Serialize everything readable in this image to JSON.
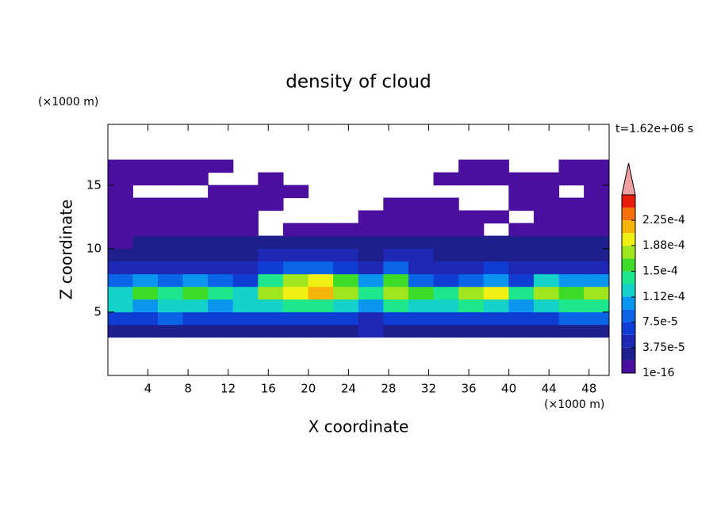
{
  "chart_data": {
    "type": "contour",
    "title": "density of cloud",
    "time_label": "t=1.62e+06 s",
    "xlabel": "X coordinate",
    "ylabel": "Z coordinate",
    "x_unit": "(×1000 m)",
    "y_unit": "(×1000 m)",
    "xlim": [
      0,
      50
    ],
    "ylim": [
      0,
      19.8
    ],
    "xticks": [
      4,
      8,
      12,
      16,
      20,
      24,
      28,
      32,
      36,
      40,
      44,
      48
    ],
    "yticks": [
      5,
      10,
      15
    ],
    "field": {
      "x": [
        1.25,
        3.75,
        6.25,
        8.75,
        11.25,
        13.75,
        16.25,
        18.75,
        21.25,
        23.75,
        26.25,
        28.75,
        31.25,
        33.75,
        36.25,
        38.75,
        41.25,
        43.75,
        46.25,
        48.75
      ],
      "z": [
        3.5,
        4.5,
        5.5,
        6.5,
        7.5,
        8.5,
        9.5,
        10.5,
        11.5,
        12.5,
        13.5,
        14.5,
        15.5,
        16.5
      ],
      "values": [
        [
          2.8e-05,
          2.8e-05,
          2.8e-05,
          2.8e-05,
          2.8e-05,
          2.8e-05,
          2.8e-05,
          2.8e-05,
          2.8e-05,
          2.8e-05,
          4.7e-05,
          2.8e-05,
          2.8e-05,
          2.8e-05,
          2.8e-05,
          2.8e-05,
          2.8e-05,
          2.8e-05,
          2.8e-05,
          2.8e-05
        ],
        [
          6.5e-05,
          6.5e-05,
          8.4e-05,
          6.5e-05,
          6.5e-05,
          6.5e-05,
          6.5e-05,
          6.5e-05,
          6.5e-05,
          6.5e-05,
          4.7e-05,
          6.5e-05,
          6.5e-05,
          6.5e-05,
          6.5e-05,
          6.5e-05,
          6.5e-05,
          6.5e-05,
          8.4e-05,
          8.4e-05
        ],
        [
          0.000122,
          0.000103,
          0.000122,
          0.000122,
          0.000103,
          0.000122,
          0.000122,
          0.00014,
          0.00014,
          0.000122,
          0.000103,
          0.00014,
          0.000122,
          0.000122,
          0.00014,
          0.000122,
          0.000103,
          0.000122,
          0.00014,
          0.00014
        ],
        [
          0.000122,
          0.00016,
          0.00014,
          0.00016,
          0.00014,
          0.000122,
          0.000178,
          0.000197,
          0.000215,
          0.000178,
          0.00014,
          0.000178,
          0.00016,
          0.00014,
          0.000178,
          0.000197,
          0.00014,
          0.000178,
          0.00016,
          0.000178
        ],
        [
          8.4e-05,
          0.000103,
          8.4e-05,
          0.000103,
          8.4e-05,
          6.5e-05,
          0.00014,
          0.000178,
          0.000197,
          0.00016,
          0.000103,
          0.00016,
          8.4e-05,
          6.5e-05,
          8.4e-05,
          0.000103,
          6.5e-05,
          0.000122,
          0.000103,
          0.000103
        ],
        [
          4.7e-05,
          4.7e-05,
          4.7e-05,
          4.7e-05,
          4.7e-05,
          4.7e-05,
          6.5e-05,
          8.4e-05,
          8.4e-05,
          6.5e-05,
          4.7e-05,
          8.4e-05,
          4.7e-05,
          4.7e-05,
          4.7e-05,
          6.5e-05,
          4.7e-05,
          4.7e-05,
          4.7e-05,
          4.7e-05
        ],
        [
          2.8e-05,
          2.8e-05,
          2.8e-05,
          2.8e-05,
          2.8e-05,
          2.8e-05,
          4.7e-05,
          4.7e-05,
          4.7e-05,
          4.7e-05,
          2.8e-05,
          4.7e-05,
          4.7e-05,
          2.8e-05,
          2.8e-05,
          2.8e-05,
          2.8e-05,
          2.8e-05,
          2.8e-05,
          2.8e-05
        ],
        [
          9e-06,
          2.8e-05,
          2.8e-05,
          2.8e-05,
          2.8e-05,
          2.8e-05,
          2.8e-05,
          2.8e-05,
          2.8e-05,
          2.8e-05,
          2.8e-05,
          2.8e-05,
          2.8e-05,
          2.8e-05,
          2.8e-05,
          2.8e-05,
          2.8e-05,
          2.8e-05,
          2.8e-05,
          2.8e-05
        ],
        [
          9e-06,
          9e-06,
          9e-06,
          9e-06,
          9e-06,
          9e-06,
          null,
          9e-06,
          9e-06,
          9e-06,
          9e-06,
          9e-06,
          9e-06,
          9e-06,
          9e-06,
          null,
          9e-06,
          9e-06,
          9e-06,
          9e-06
        ],
        [
          9e-06,
          9e-06,
          9e-06,
          9e-06,
          9e-06,
          9e-06,
          null,
          null,
          null,
          null,
          9e-06,
          9e-06,
          9e-06,
          9e-06,
          9e-06,
          9e-06,
          null,
          9e-06,
          9e-06,
          9e-06
        ],
        [
          9e-06,
          9e-06,
          9e-06,
          9e-06,
          9e-06,
          9e-06,
          9e-06,
          null,
          null,
          null,
          null,
          9e-06,
          9e-06,
          9e-06,
          null,
          null,
          9e-06,
          9e-06,
          9e-06,
          9e-06
        ],
        [
          9e-06,
          null,
          null,
          null,
          9e-06,
          9e-06,
          9e-06,
          9e-06,
          null,
          null,
          null,
          null,
          null,
          null,
          null,
          null,
          9e-06,
          9e-06,
          null,
          9e-06
        ],
        [
          9e-06,
          9e-06,
          9e-06,
          9e-06,
          null,
          null,
          9e-06,
          null,
          null,
          null,
          null,
          null,
          null,
          9e-06,
          9e-06,
          9e-06,
          9e-06,
          9e-06,
          9e-06,
          9e-06
        ],
        [
          9e-06,
          9e-06,
          9e-06,
          9e-06,
          9e-06,
          null,
          null,
          null,
          null,
          null,
          null,
          null,
          null,
          null,
          9e-06,
          9e-06,
          null,
          null,
          9e-06,
          9e-06
        ]
      ]
    },
    "clim": [
      1e-16,
      0.0002625
    ],
    "colors": [
      "#4b0fa0",
      "#1e1e8c",
      "#1e28b4",
      "#0f3cd2",
      "#0a64e6",
      "#0a96f0",
      "#14d2c8",
      "#1ee68c",
      "#3cdc28",
      "#a0e61e",
      "#f0f014",
      "#f5b40a",
      "#f5700a",
      "#e61e0a"
    ],
    "extend_color": "#f0a0a0",
    "cticks": [
      {
        "value": 1e-16,
        "label": "1e-16"
      },
      {
        "value": 3.75e-05,
        "label": "3.75e-5"
      },
      {
        "value": 7.5e-05,
        "label": "7.5e-5"
      },
      {
        "value": 0.000112,
        "label": "1.12e-4"
      },
      {
        "value": 0.00015,
        "label": "1.5e-4"
      },
      {
        "value": 0.000188,
        "label": "1.88e-4"
      },
      {
        "value": 0.000225,
        "label": "2.25e-4"
      }
    ]
  }
}
